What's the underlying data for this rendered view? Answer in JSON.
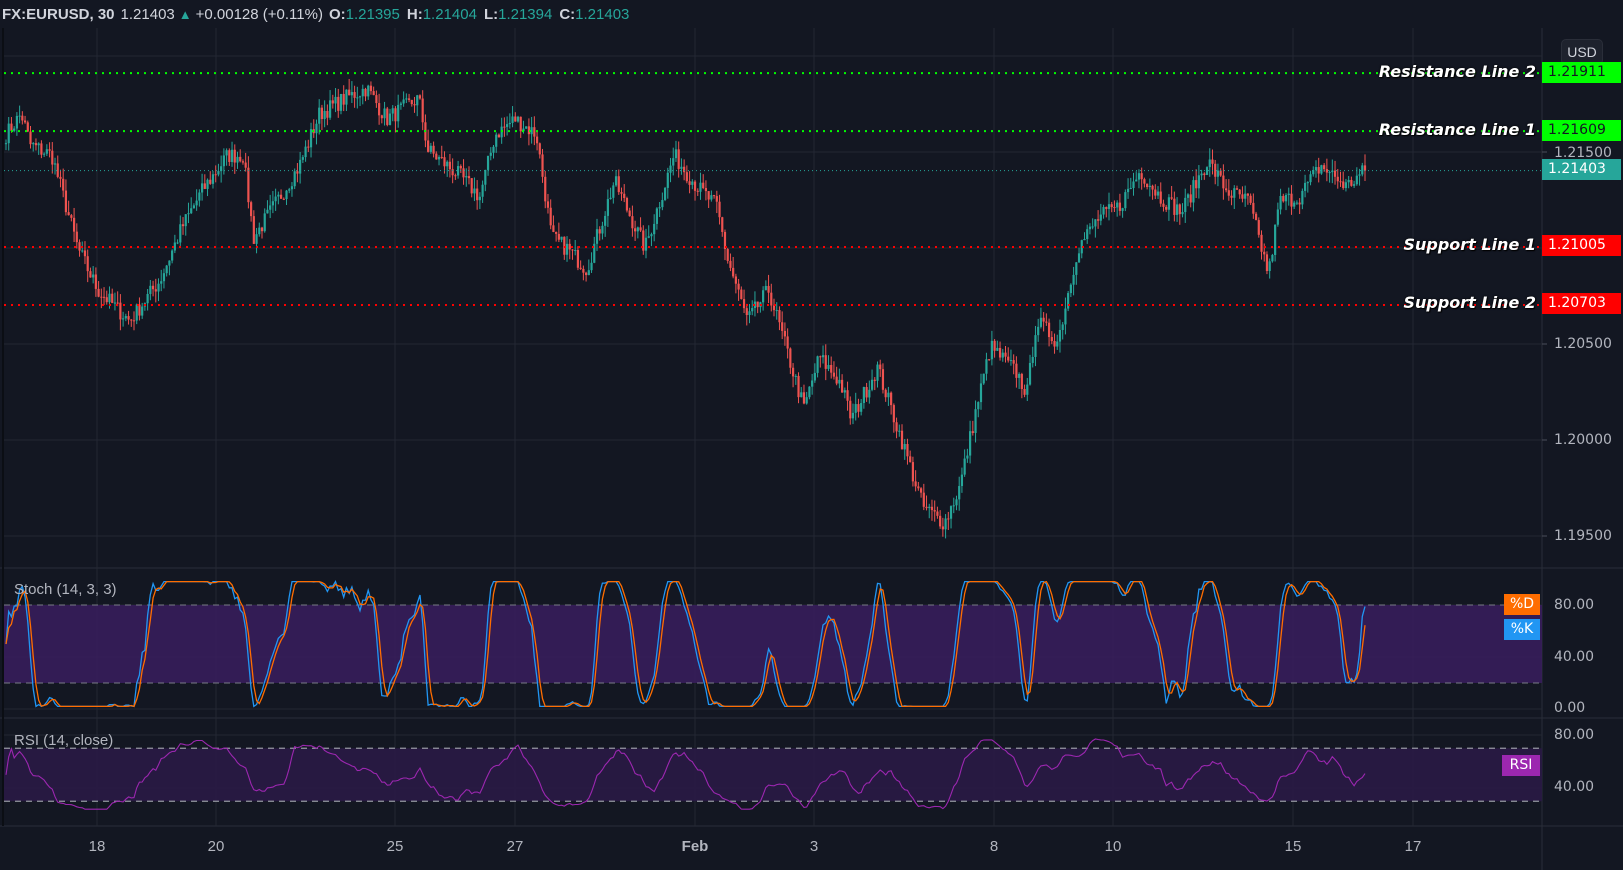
{
  "header": {
    "symbol": "FX:EURUSD, 30",
    "last": "1.21403",
    "change": "+0.00128 (+0.11%)",
    "open_label": "O:",
    "open": "1.21395",
    "high_label": "H:",
    "high": "1.21404",
    "low_label": "L:",
    "low": "1.21394",
    "close_label": "C:",
    "close": "1.21403",
    "direction_icon": "triangle-up-icon"
  },
  "currency_badge": "USD",
  "colors": {
    "background": "#131722",
    "grid": "#232733",
    "up": "#26a69a",
    "down": "#ef5350",
    "resistance": "#00ff00",
    "support": "#ff0000",
    "last_price": "#26a69a",
    "stoch_k": "#2196f3",
    "stoch_d": "#ff6d00",
    "stoch_band": "#3a1d5e",
    "rsi_line": "#9c27b0",
    "rsi_band": "#2a1a45"
  },
  "price_axis": {
    "ticks": [
      "1.21500",
      "1.20500",
      "1.20000",
      "1.19500"
    ],
    "tick_values": [
      1.215,
      1.205,
      1.2,
      1.195
    ]
  },
  "lines": [
    {
      "label": "Resistance Line 2",
      "value": "1.21911",
      "price": 1.21911,
      "type": "resistance"
    },
    {
      "label": "Resistance Line 1",
      "value": "1.21609",
      "price": 1.21609,
      "type": "resistance"
    },
    {
      "label": "Support Line 1",
      "value": "1.21005",
      "price": 1.21005,
      "type": "support"
    },
    {
      "label": "Support Line 2",
      "value": "1.20703",
      "price": 1.20703,
      "type": "support"
    }
  ],
  "last_price_tag": {
    "value": "1.21403",
    "price": 1.21403
  },
  "stoch": {
    "title": "Stoch (14, 3, 3)",
    "ticks": [
      "80.00",
      "40.00",
      "0.00"
    ],
    "d_label": "%D",
    "k_label": "%K",
    "upper_band": 80,
    "lower_band": 20
  },
  "rsi": {
    "title": "RSI (14, close)",
    "ticks": [
      "80.00",
      "40.00"
    ],
    "label": "RSI",
    "upper_band": 70,
    "lower_band": 30
  },
  "x_axis": {
    "labels": [
      "18",
      "20",
      "25",
      "27",
      "Feb",
      "3",
      "8",
      "10",
      "15",
      "17"
    ]
  },
  "chart_data": {
    "type": "candlestick",
    "title": "FX:EURUSD, 30",
    "xlabel": "",
    "ylabel": "USD",
    "ylim": [
      1.1935,
      1.2215
    ],
    "x_tick_labels": [
      "18",
      "20",
      "25",
      "27",
      "Feb",
      "3",
      "8",
      "10",
      "15",
      "17"
    ],
    "price_path_anchors": [
      [
        0,
        1.21591
      ],
      [
        0.01,
        1.21698
      ],
      [
        0.016,
        1.21537
      ],
      [
        0.03,
        1.21483
      ],
      [
        0.047,
        1.20998
      ],
      [
        0.06,
        1.20782
      ],
      [
        0.081,
        1.2062
      ],
      [
        0.101,
        1.20836
      ],
      [
        0.115,
        1.21106
      ],
      [
        0.128,
        1.21294
      ],
      [
        0.145,
        1.21483
      ],
      [
        0.155,
        1.21483
      ],
      [
        0.162,
        1.21052
      ],
      [
        0.175,
        1.21214
      ],
      [
        0.192,
        1.21429
      ],
      [
        0.205,
        1.21698
      ],
      [
        0.222,
        1.2178
      ],
      [
        0.236,
        1.21833
      ],
      [
        0.249,
        1.21672
      ],
      [
        0.27,
        1.2178
      ],
      [
        0.276,
        1.2151
      ],
      [
        0.297,
        1.21375
      ],
      [
        0.31,
        1.21267
      ],
      [
        0.32,
        1.21591
      ],
      [
        0.333,
        1.21672
      ],
      [
        0.347,
        1.21591
      ],
      [
        0.357,
        1.21052
      ],
      [
        0.367,
        1.20998
      ],
      [
        0.38,
        1.2089
      ],
      [
        0.398,
        1.21348
      ],
      [
        0.418,
        1.20998
      ],
      [
        0.437,
        1.21483
      ],
      [
        0.452,
        1.21321
      ],
      [
        0.465,
        1.21214
      ],
      [
        0.472,
        1.20944
      ],
      [
        0.485,
        1.2062
      ],
      [
        0.499,
        1.20782
      ],
      [
        0.512,
        1.20432
      ],
      [
        0.522,
        1.20163
      ],
      [
        0.532,
        1.20432
      ],
      [
        0.546,
        1.20297
      ],
      [
        0.553,
        1.20108
      ],
      [
        0.57,
        1.20378
      ],
      [
        0.587,
        1.19974
      ],
      [
        0.6,
        1.1965
      ],
      [
        0.614,
        1.19569
      ],
      [
        0.624,
        1.19758
      ],
      [
        0.634,
        1.20135
      ],
      [
        0.644,
        1.20486
      ],
      [
        0.661,
        1.20351
      ],
      [
        0.668,
        1.20243
      ],
      [
        0.674,
        1.2062
      ],
      [
        0.688,
        1.20513
      ],
      [
        0.701,
        1.20998
      ],
      [
        0.715,
        1.21159
      ],
      [
        0.728,
        1.21214
      ],
      [
        0.742,
        1.21402
      ],
      [
        0.755,
        1.21267
      ],
      [
        0.769,
        1.21186
      ],
      [
        0.786,
        1.21456
      ],
      [
        0.799,
        1.21294
      ],
      [
        0.813,
        1.21241
      ],
      [
        0.826,
        1.20863
      ],
      [
        0.833,
        1.21241
      ],
      [
        0.846,
        1.21267
      ],
      [
        0.86,
        1.21429
      ],
      [
        0.877,
        1.21321
      ],
      [
        0.889,
        1.21403
      ]
    ],
    "horizontal_lines": [
      {
        "name": "Resistance Line 2",
        "value": 1.21911
      },
      {
        "name": "Resistance Line 1",
        "value": 1.21609
      },
      {
        "name": "Support Line 1",
        "value": 1.21005
      },
      {
        "name": "Support Line 2",
        "value": 1.20703
      }
    ],
    "last_close": 1.21403,
    "indicators": [
      {
        "name": "Stoch (14, 3, 3)",
        "series": [
          "%K",
          "%D"
        ],
        "range": [
          0,
          100
        ],
        "bands": [
          20,
          80
        ]
      },
      {
        "name": "RSI (14, close)",
        "range": [
          20,
          90
        ],
        "bands": [
          30,
          70
        ]
      }
    ]
  }
}
